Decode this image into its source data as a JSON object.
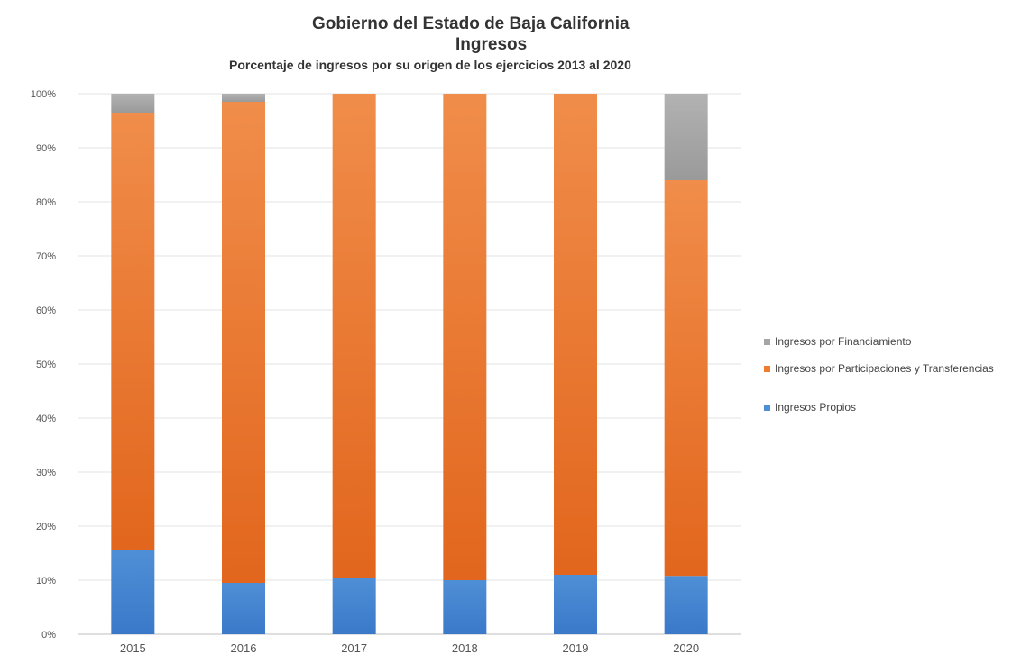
{
  "chart_data": {
    "type": "stacked-bar-100",
    "title": "Gobierno del Estado de Baja California",
    "title2": "Ingresos",
    "subtitle": "Porcentaje de  ingresos por su origen de los ejercicios 2013 al  2020",
    "categories": [
      "2015",
      "2016",
      "2017",
      "2018",
      "2019",
      "2020"
    ],
    "series": [
      {
        "name": "Ingresos Propios",
        "color": "#4f8fd6",
        "values": [
          15.5,
          9.5,
          10.5,
          10.0,
          11.0,
          10.8
        ]
      },
      {
        "name": "Ingresos por Participaciones y Transferencias",
        "color": "#ed7d31",
        "values": [
          81.0,
          89.0,
          89.5,
          90.0,
          89.0,
          73.2
        ]
      },
      {
        "name": "Ingresos por Financiamiento",
        "color": "#a5a5a5",
        "values": [
          3.5,
          1.5,
          0.0,
          0.0,
          0.0,
          16.0
        ]
      }
    ],
    "legend_order": [
      "Ingresos por Financiamiento",
      "Ingresos por Participaciones y Transferencias",
      "Ingresos Propios"
    ],
    "yticks": [
      "0%",
      "10%",
      "20%",
      "30%",
      "40%",
      "50%",
      "60%",
      "70%",
      "80%",
      "90%",
      "100%"
    ],
    "ylim": [
      0,
      100
    ],
    "legend_position": "right",
    "grid": true
  }
}
